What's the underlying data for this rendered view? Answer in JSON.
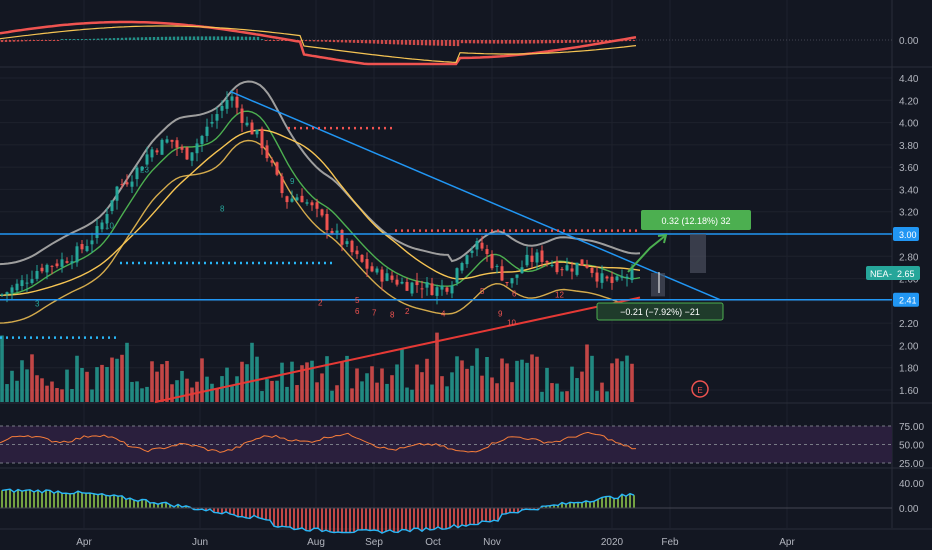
{
  "colors": {
    "background": "#131722",
    "grid": "#1e222d",
    "divider": "#2a2e39",
    "axis_text": "#b2b5be",
    "up": "#26a69a",
    "down": "#ef5350",
    "trend_blue": "#2196f3",
    "support_red": "#e53935",
    "ma_orange": "#f6c453",
    "ma_green": "#4caf50",
    "ma_gray": "#9e9e9e",
    "dotted_red": "#ef5350",
    "dotted_blue": "#29b6f6",
    "rsi_fill": "#2a1f3d",
    "rsi_line": "#f57c3a",
    "positive_label": "#4caf50",
    "negative_label": "#4caf50"
  },
  "time_axis": {
    "labels": [
      "Apr",
      "Jun",
      "Aug",
      "Sep",
      "Oct",
      "Nov",
      "2020",
      "Feb",
      "Apr"
    ]
  },
  "price_axis": {
    "labels": [
      "4.40",
      "4.20",
      "4.00",
      "3.80",
      "3.60",
      "3.40",
      "3.20",
      "3.00",
      "2.80",
      "2.60",
      "2.40",
      "2.20",
      "2.00",
      "1.80",
      "1.60"
    ],
    "ticker_tag": "NEA",
    "current_price": "2.65",
    "resistance_tag": "3.00",
    "support_tag": "2.41"
  },
  "macd_axis": {
    "labels": [
      "0.00"
    ]
  },
  "rsi_axis": {
    "labels": [
      "75.00",
      "50.00",
      "25.00"
    ]
  },
  "momentum_axis": {
    "labels": [
      "40.00",
      "0.00"
    ]
  },
  "annotations": {
    "upside_label": "0.32 (12.18%) 32",
    "downside_label": "−0.21 (−7.92%) −21",
    "earnings_marker": "E"
  },
  "chart_data": [
    {
      "type": "candlestick",
      "title": "",
      "symbol": "NEA",
      "price_range": [
        1.5,
        4.45
      ],
      "last_price": 2.65,
      "horizontal_levels": [
        3.0,
        2.41
      ],
      "projection_up": {
        "change": 0.32,
        "percent": 12.18,
        "bars": 32
      },
      "projection_down": {
        "change": -0.21,
        "percent": -7.92,
        "bars": -21
      },
      "months": [
        "Apr",
        "Jun",
        "Aug",
        "Sep",
        "Oct",
        "Nov",
        "2020",
        "Feb",
        "Apr"
      ]
    },
    {
      "type": "line",
      "panel": "MACD",
      "axis_labels": [
        "0.00"
      ]
    },
    {
      "type": "area",
      "panel": "RSI",
      "ylim": [
        25,
        75
      ],
      "levels": [
        75,
        50,
        25
      ]
    },
    {
      "type": "bar",
      "panel": "momentum",
      "axis_labels": [
        "40.00",
        "0.00"
      ]
    }
  ]
}
